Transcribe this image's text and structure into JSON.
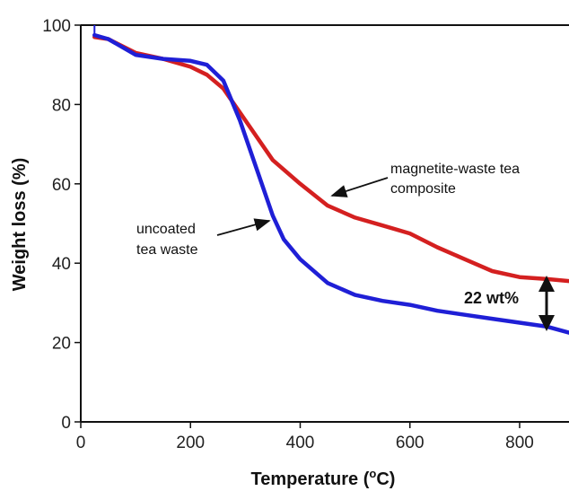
{
  "chart_data": {
    "type": "line",
    "xlabel": "Temperature (",
    "xlabel_sup": "o",
    "xlabel_suffix": "C)",
    "ylabel": "Weight loss (%)",
    "xlim": [
      0,
      890
    ],
    "ylim": [
      0,
      100
    ],
    "x_ticks": [
      0,
      200,
      400,
      600,
      800
    ],
    "y_ticks": [
      0,
      20,
      40,
      60,
      80,
      100
    ],
    "grid": false,
    "series": [
      {
        "color": "#d42020",
        "x": [
          25,
          50,
          100,
          150,
          200,
          230,
          260,
          300,
          350,
          400,
          450,
          500,
          550,
          600,
          650,
          700,
          750,
          800,
          850,
          890
        ],
        "y": [
          97,
          96.5,
          93,
          91.5,
          89.5,
          87.5,
          84,
          76,
          66,
          60,
          54.5,
          51.5,
          49.5,
          47.5,
          44,
          41,
          38,
          36.5,
          36,
          35.5
        ]
      },
      {
        "color": "#1f1fd6",
        "x": [
          25,
          50,
          100,
          150,
          200,
          230,
          260,
          290,
          320,
          350,
          370,
          400,
          450,
          500,
          550,
          600,
          650,
          700,
          750,
          800,
          850,
          890
        ],
        "y": [
          97.5,
          96.5,
          92.5,
          91.5,
          91,
          90,
          86,
          76,
          64,
          52,
          46,
          41,
          35,
          32,
          30.5,
          29.5,
          28,
          27,
          26,
          25,
          24,
          22.5
        ]
      }
    ],
    "annotations": [
      {
        "text": "magnetite-waste tea",
        "line": 1
      },
      {
        "text": "composite",
        "line": 2
      },
      {
        "text": "uncoated",
        "line": 1
      },
      {
        "text": "tea waste",
        "line": 2
      },
      {
        "text": "22 wt%"
      }
    ]
  }
}
